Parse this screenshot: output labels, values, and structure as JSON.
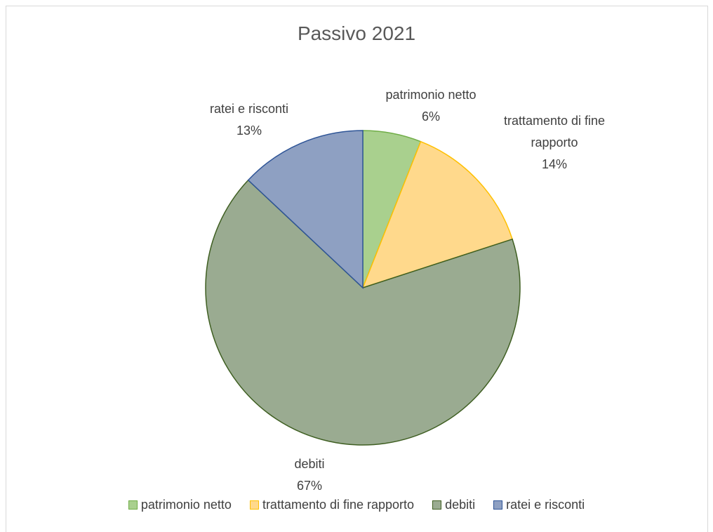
{
  "chart_data": {
    "type": "pie",
    "title": "Passivo 2021",
    "categories": [
      "patrimonio netto",
      "trattamento di fine rapporto",
      "debiti",
      "ratei e risconti"
    ],
    "values": [
      6,
      14,
      67,
      13
    ],
    "value_labels": [
      "6%",
      "14%",
      "67%",
      "13%"
    ],
    "colors": [
      "#a9d08e",
      "#ffd98c",
      "#9aab91",
      "#8ea0c2"
    ],
    "edge_colors": [
      "#70ad47",
      "#ffc000",
      "#3f5f22",
      "#2f5597"
    ],
    "legend": "bottom"
  }
}
